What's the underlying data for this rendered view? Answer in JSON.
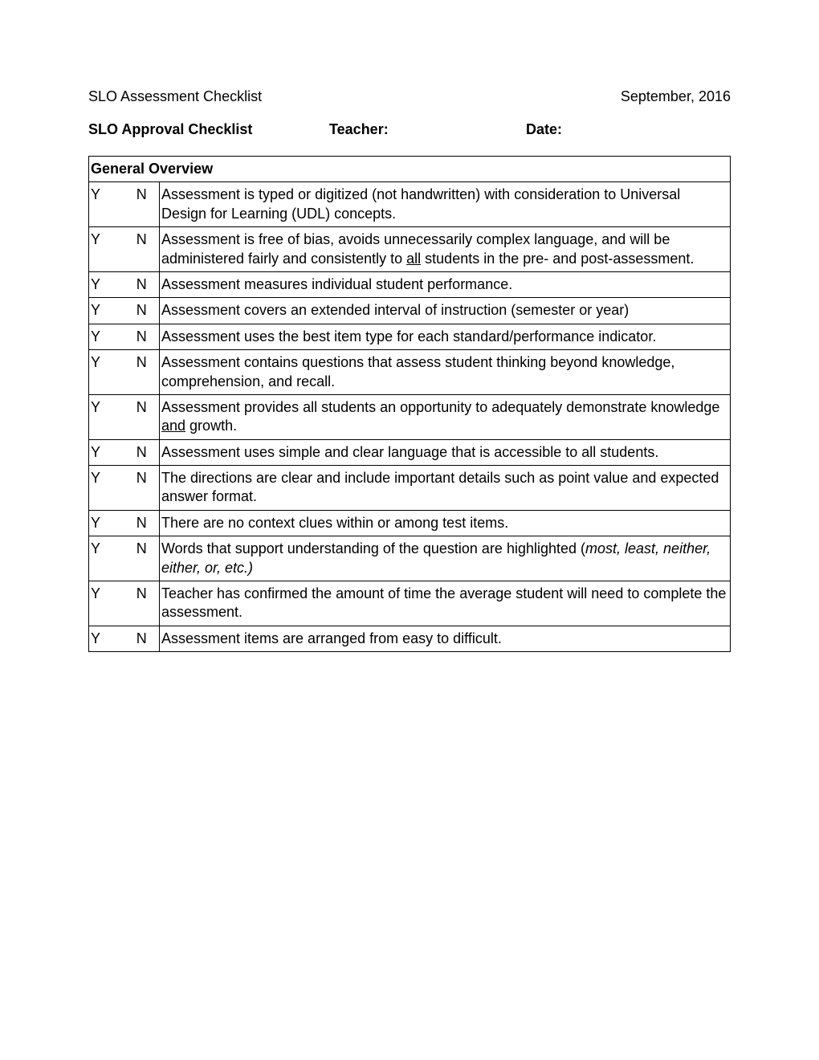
{
  "header": {
    "left": "SLO Assessment Checklist",
    "right": "September, 2016"
  },
  "subheader": {
    "title": "SLO Approval Checklist",
    "teacher_label": "Teacher:",
    "date_label": "Date:"
  },
  "table": {
    "section_title": "General Overview",
    "y_label": "Y",
    "n_label": "N",
    "rows": [
      {
        "html": "Assessment is typed or digitized (not handwritten) with consideration to Universal Design for Learning (UDL) concepts."
      },
      {
        "html": "Assessment is free of bias, avoids unnecessarily complex language, and will be administered fairly and consistently to <span class=\"underline\">all</span> students in the pre- and post-assessment."
      },
      {
        "html": "Assessment measures individual student performance."
      },
      {
        "html": "Assessment covers an extended interval of instruction (semester or year)"
      },
      {
        "html": "Assessment uses the best item type for each standard/performance indicator."
      },
      {
        "html": "Assessment contains questions that assess student thinking beyond knowledge, comprehension, and recall."
      },
      {
        "html": "Assessment provides all students an opportunity to adequately demonstrate knowledge <span class=\"underline\">and</span> growth."
      },
      {
        "html": "Assessment uses simple and clear language that is accessible to all students."
      },
      {
        "html": "The directions are clear and include important details such as point value and expected answer format."
      },
      {
        "html": "There are no context clues within or among test items."
      },
      {
        "html": "Words that support understanding of the question are highlighted (<span class=\"italic\">most, least, neither, either, or, etc.)</span>"
      },
      {
        "html": "Teacher has confirmed the amount of time the average student will need to complete the assessment."
      },
      {
        "html": "Assessment items are arranged from easy to difficult."
      }
    ]
  }
}
